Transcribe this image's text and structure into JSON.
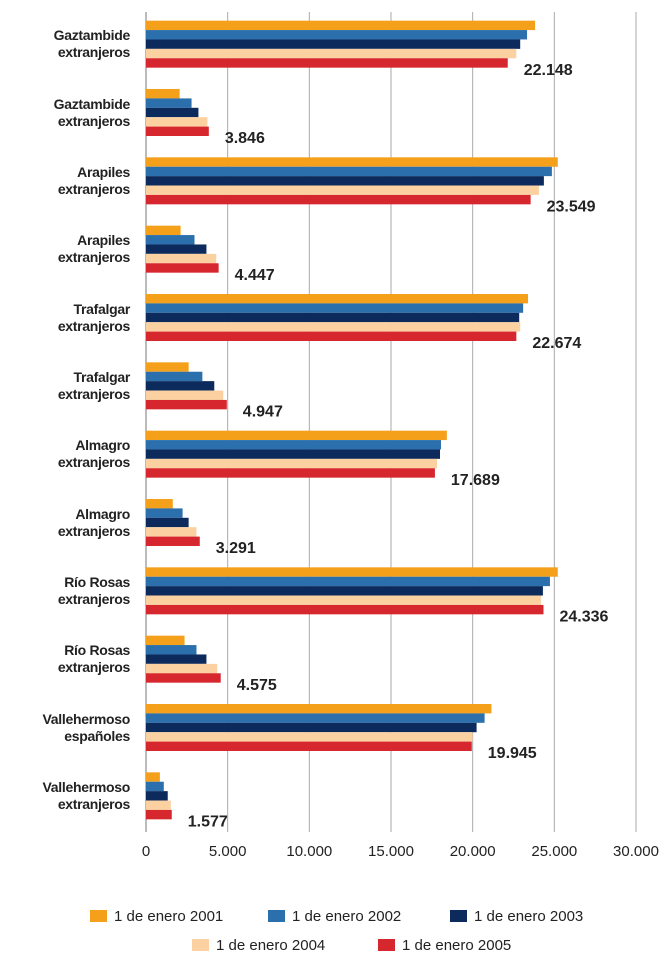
{
  "chart_data": {
    "type": "hbar",
    "categories": [
      "Gaztambide extranjeros",
      "Gaztambide extranjeros",
      "Arapiles extranjeros",
      "Arapiles extranjeros",
      "Trafalgar extranjeros",
      "Trafalgar extranjeros",
      "Almagro extranjeros",
      "Almagro extranjeros",
      "Río Rosas extranjeros",
      "Río Rosas extranjeros",
      "Vallehermoso españoles",
      "Vallehermoso extranjeros"
    ],
    "series": [
      {
        "name": "1 de enero 2001",
        "color": "#f5a01a",
        "values": [
          23820,
          2060,
          25210,
          2120,
          23390,
          2610,
          18420,
          1640,
          25210,
          2360,
          21150,
          850
        ]
      },
      {
        "name": "1 de enero 2002",
        "color": "#2b70ad",
        "values": [
          23330,
          2790,
          24850,
          2970,
          23090,
          3450,
          18060,
          2240,
          24730,
          3090,
          20730,
          1090
        ]
      },
      {
        "name": "1 de enero 2003",
        "color": "#0c2a5c",
        "values": [
          22910,
          3210,
          24360,
          3700,
          22850,
          4180,
          18000,
          2610,
          24300,
          3700,
          20240,
          1330
        ]
      },
      {
        "name": "1 de enero 2004",
        "color": "#fbd1a2",
        "values": [
          22670,
          3760,
          24060,
          4300,
          22910,
          4730,
          17820,
          3090,
          24180,
          4360,
          20000,
          1520
        ]
      },
      {
        "name": "1 de enero 2005",
        "color": "#d6262e",
        "values": [
          22148,
          3846,
          23549,
          4447,
          22674,
          4947,
          17689,
          3291,
          24336,
          4575,
          19945,
          1577
        ],
        "value_labels": [
          "22.148",
          "3.846",
          "23.549",
          "4.447",
          "22.674",
          "4.947",
          "17.689",
          "3.291",
          "24.336",
          "4.575",
          "19.945",
          "1.577"
        ]
      }
    ],
    "xlim": [
      0,
      30000
    ],
    "xticks": [
      0,
      {
        "value": 5000,
        "label": "5.000"
      },
      {
        "value": 10000,
        "label": "10.000"
      },
      {
        "value": 15000,
        "label": "15.000"
      },
      {
        "value": 20000,
        "label": "20.000"
      },
      {
        "value": 25000,
        "label": "25.000"
      },
      {
        "value": 30000,
        "label": "30.000"
      }
    ],
    "grid": true,
    "legend": "bottom"
  }
}
